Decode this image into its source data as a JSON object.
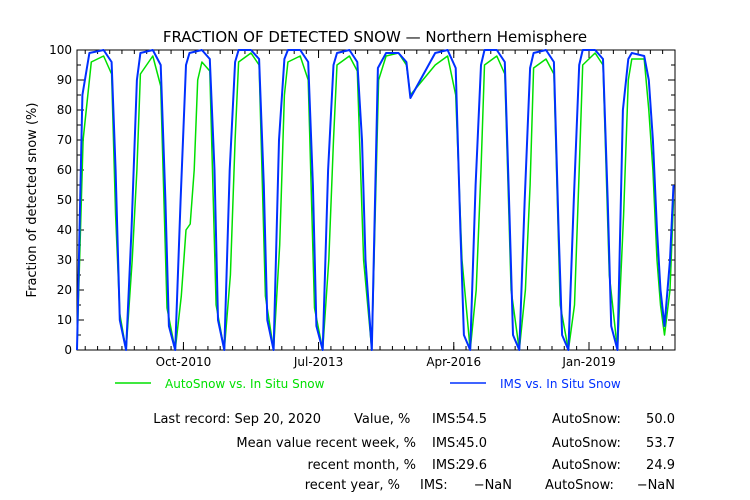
{
  "chart_data": {
    "type": "line",
    "title": "FRACTION OF DETECTED SNOW — Northern Hemisphere",
    "ylabel": "Fraction of detected snow (%)",
    "xlabel": "",
    "ylim": [
      0,
      100
    ],
    "yticks": [
      0,
      10,
      20,
      30,
      40,
      50,
      60,
      70,
      80,
      90,
      100
    ],
    "xlim": [
      "2008-08-01",
      "2020-10-01"
    ],
    "xticks": [
      {
        "date": "2010-10-01",
        "label": "Oct-2010"
      },
      {
        "date": "2013-07-01",
        "label": "Jul-2013"
      },
      {
        "date": "2016-04-01",
        "label": "Apr-2016"
      },
      {
        "date": "2019-01-01",
        "label": "Jan-2019"
      }
    ],
    "grid": false,
    "legend_position": "bottom",
    "series": [
      {
        "name": "AutoSnow vs. In Situ Snow",
        "color": "#00e000",
        "points": [
          [
            "2008-08-01",
            0
          ],
          [
            "2008-09-15",
            70
          ],
          [
            "2008-11-15",
            96
          ],
          [
            "2009-02-15",
            98
          ],
          [
            "2009-04-15",
            92
          ],
          [
            "2009-05-15",
            45
          ],
          [
            "2009-06-15",
            12
          ],
          [
            "2009-08-01",
            0
          ],
          [
            "2009-09-15",
            30
          ],
          [
            "2009-10-20",
            60
          ],
          [
            "2009-11-15",
            92
          ],
          [
            "2010-02-15",
            98
          ],
          [
            "2010-04-15",
            88
          ],
          [
            "2010-06-01",
            14
          ],
          [
            "2010-08-01",
            0
          ],
          [
            "2010-09-15",
            18
          ],
          [
            "2010-10-20",
            40
          ],
          [
            "2010-11-20",
            42
          ],
          [
            "2010-12-20",
            60
          ],
          [
            "2011-01-15",
            90
          ],
          [
            "2011-02-15",
            96
          ],
          [
            "2011-04-15",
            93
          ],
          [
            "2011-06-01",
            15
          ],
          [
            "2011-08-01",
            0
          ],
          [
            "2011-09-15",
            25
          ],
          [
            "2011-10-20",
            70
          ],
          [
            "2011-11-15",
            96
          ],
          [
            "2012-02-15",
            99
          ],
          [
            "2012-04-15",
            95
          ],
          [
            "2012-06-01",
            18
          ],
          [
            "2012-08-01",
            0
          ],
          [
            "2012-09-15",
            35
          ],
          [
            "2012-10-20",
            85
          ],
          [
            "2012-11-15",
            96
          ],
          [
            "2013-02-15",
            98
          ],
          [
            "2013-04-15",
            90
          ],
          [
            "2013-06-01",
            14
          ],
          [
            "2013-08-01",
            0
          ],
          [
            "2013-09-15",
            30
          ],
          [
            "2013-10-20",
            70
          ],
          [
            "2013-11-15",
            95
          ],
          [
            "2014-02-15",
            98
          ],
          [
            "2014-04-15",
            93
          ],
          [
            "2014-06-01",
            30
          ],
          [
            "2014-08-01",
            0
          ],
          [
            "2014-09-20",
            90
          ],
          [
            "2014-11-15",
            98
          ],
          [
            "2015-02-15",
            99
          ],
          [
            "2015-04-15",
            95
          ],
          [
            "2015-05-15",
            85
          ],
          [
            "2015-11-15",
            95
          ],
          [
            "2016-02-15",
            98
          ],
          [
            "2016-04-15",
            85
          ],
          [
            "2016-06-01",
            30
          ],
          [
            "2016-08-01",
            0
          ],
          [
            "2016-09-15",
            20
          ],
          [
            "2016-10-20",
            60
          ],
          [
            "2016-11-15",
            95
          ],
          [
            "2017-02-15",
            98
          ],
          [
            "2017-04-15",
            92
          ],
          [
            "2017-06-01",
            20
          ],
          [
            "2017-08-01",
            0
          ],
          [
            "2017-09-15",
            20
          ],
          [
            "2017-10-20",
            55
          ],
          [
            "2017-11-15",
            94
          ],
          [
            "2018-02-15",
            97
          ],
          [
            "2018-04-15",
            92
          ],
          [
            "2018-06-01",
            15
          ],
          [
            "2018-08-01",
            0
          ],
          [
            "2018-09-15",
            15
          ],
          [
            "2018-10-20",
            60
          ],
          [
            "2018-11-15",
            95
          ],
          [
            "2019-02-15",
            99
          ],
          [
            "2019-04-15",
            95
          ],
          [
            "2019-06-01",
            25
          ],
          [
            "2019-08-01",
            0
          ],
          [
            "2019-09-15",
            45
          ],
          [
            "2019-10-20",
            90
          ],
          [
            "2019-11-15",
            97
          ],
          [
            "2020-02-15",
            97
          ],
          [
            "2020-03-20",
            80
          ],
          [
            "2020-04-20",
            60
          ],
          [
            "2020-05-20",
            30
          ],
          [
            "2020-06-15",
            15
          ],
          [
            "2020-07-15",
            5
          ],
          [
            "2020-08-25",
            20
          ],
          [
            "2020-09-20",
            50
          ]
        ]
      },
      {
        "name": "IMS vs. In Situ Snow",
        "color": "#0030ff",
        "points": [
          [
            "2008-08-01",
            0
          ],
          [
            "2008-09-10",
            85
          ],
          [
            "2008-11-01",
            99
          ],
          [
            "2009-02-15",
            100
          ],
          [
            "2009-04-15",
            96
          ],
          [
            "2009-05-15",
            60
          ],
          [
            "2009-06-15",
            10
          ],
          [
            "2009-08-01",
            0
          ],
          [
            "2009-09-10",
            40
          ],
          [
            "2009-10-20",
            90
          ],
          [
            "2009-11-15",
            99
          ],
          [
            "2010-02-15",
            100
          ],
          [
            "2010-04-15",
            95
          ],
          [
            "2010-05-20",
            50
          ],
          [
            "2010-06-15",
            8
          ],
          [
            "2010-08-01",
            0
          ],
          [
            "2010-09-10",
            50
          ],
          [
            "2010-10-20",
            95
          ],
          [
            "2010-11-15",
            99
          ],
          [
            "2011-02-15",
            100
          ],
          [
            "2011-04-15",
            97
          ],
          [
            "2011-05-20",
            60
          ],
          [
            "2011-06-15",
            10
          ],
          [
            "2011-08-01",
            0
          ],
          [
            "2011-09-10",
            60
          ],
          [
            "2011-10-20",
            96
          ],
          [
            "2011-11-15",
            100
          ],
          [
            "2012-02-15",
            100
          ],
          [
            "2012-04-15",
            97
          ],
          [
            "2012-05-20",
            55
          ],
          [
            "2012-06-15",
            10
          ],
          [
            "2012-08-01",
            0
          ],
          [
            "2012-09-10",
            70
          ],
          [
            "2012-10-20",
            97
          ],
          [
            "2012-11-15",
            100
          ],
          [
            "2013-02-15",
            100
          ],
          [
            "2013-04-15",
            96
          ],
          [
            "2013-05-20",
            55
          ],
          [
            "2013-06-15",
            8
          ],
          [
            "2013-08-01",
            0
          ],
          [
            "2013-09-10",
            60
          ],
          [
            "2013-10-20",
            95
          ],
          [
            "2013-11-15",
            99
          ],
          [
            "2014-02-15",
            100
          ],
          [
            "2014-04-15",
            96
          ],
          [
            "2014-05-20",
            70
          ],
          [
            "2014-06-15",
            30
          ],
          [
            "2014-08-01",
            0
          ],
          [
            "2014-09-15",
            94
          ],
          [
            "2014-11-15",
            99
          ],
          [
            "2015-02-15",
            99
          ],
          [
            "2015-04-15",
            96
          ],
          [
            "2015-05-15",
            84
          ],
          [
            "2015-11-15",
            99
          ],
          [
            "2016-02-15",
            100
          ],
          [
            "2016-04-15",
            94
          ],
          [
            "2016-05-20",
            40
          ],
          [
            "2016-06-15",
            5
          ],
          [
            "2016-08-01",
            0
          ],
          [
            "2016-09-10",
            55
          ],
          [
            "2016-10-20",
            95
          ],
          [
            "2016-11-15",
            100
          ],
          [
            "2017-02-15",
            100
          ],
          [
            "2017-04-15",
            96
          ],
          [
            "2017-05-20",
            45
          ],
          [
            "2017-06-15",
            5
          ],
          [
            "2017-08-01",
            0
          ],
          [
            "2017-09-10",
            50
          ],
          [
            "2017-10-20",
            94
          ],
          [
            "2017-11-15",
            99
          ],
          [
            "2018-02-15",
            100
          ],
          [
            "2018-04-15",
            96
          ],
          [
            "2018-05-20",
            40
          ],
          [
            "2018-06-15",
            5
          ],
          [
            "2018-08-01",
            0
          ],
          [
            "2018-09-10",
            50
          ],
          [
            "2018-10-20",
            95
          ],
          [
            "2018-11-15",
            100
          ],
          [
            "2019-02-15",
            100
          ],
          [
            "2019-04-15",
            97
          ],
          [
            "2019-05-20",
            50
          ],
          [
            "2019-06-15",
            8
          ],
          [
            "2019-08-01",
            0
          ],
          [
            "2019-09-10",
            80
          ],
          [
            "2019-10-20",
            97
          ],
          [
            "2019-11-15",
            99
          ],
          [
            "2020-02-15",
            98
          ],
          [
            "2020-03-20",
            90
          ],
          [
            "2020-04-20",
            70
          ],
          [
            "2020-05-20",
            40
          ],
          [
            "2020-06-15",
            20
          ],
          [
            "2020-07-15",
            8
          ],
          [
            "2020-08-25",
            30
          ],
          [
            "2020-09-20",
            55
          ]
        ]
      }
    ]
  },
  "stats": {
    "last_record_label": "Last record: Sep 20, 2020",
    "value_label": "Value, %",
    "ims_label": "IMS:",
    "autosnow_label": "AutoSnow:",
    "last_ims": "54.5",
    "last_autosnow": "50.0",
    "week_label": "Mean value recent week, %",
    "week_ims": "45.0",
    "week_autosnow": "53.7",
    "month_label": "recent month, %",
    "month_ims": "29.6",
    "month_autosnow": "24.9",
    "year_label": "recent year, %",
    "year_ims": "−NaN",
    "year_autosnow": "−NaN"
  }
}
